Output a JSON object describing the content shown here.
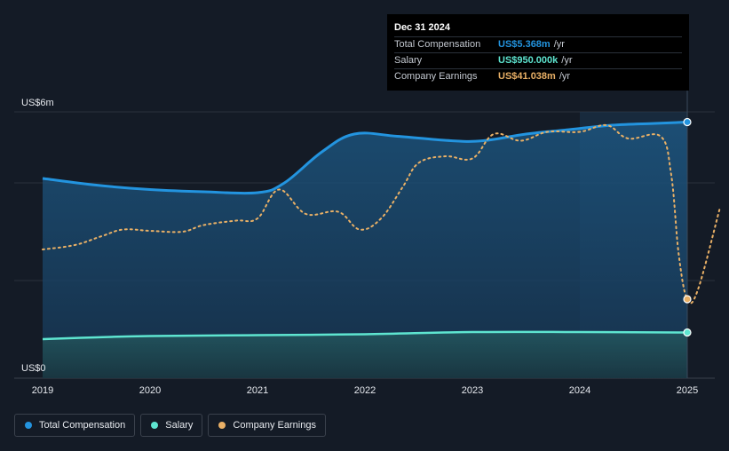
{
  "chart_data": {
    "type": "area",
    "x_ticks": [
      "2019",
      "2020",
      "2021",
      "2022",
      "2023",
      "2024",
      "2025"
    ],
    "y_labels": {
      "top": "US$6m",
      "bottom": "US$0"
    },
    "ylim": [
      0,
      6.0
    ],
    "y_gridlines": [
      0,
      2.2,
      4.4,
      6.0
    ],
    "series": [
      {
        "name": "Total Compensation",
        "color": "#2394df",
        "points": [
          [
            2019.0,
            4.5
          ],
          [
            2019.5,
            4.35
          ],
          [
            2020.0,
            4.25
          ],
          [
            2020.5,
            4.2
          ],
          [
            2021.0,
            4.18
          ],
          [
            2021.25,
            4.4
          ],
          [
            2021.6,
            5.1
          ],
          [
            2021.9,
            5.5
          ],
          [
            2022.3,
            5.45
          ],
          [
            2022.8,
            5.35
          ],
          [
            2023.1,
            5.35
          ],
          [
            2023.5,
            5.5
          ],
          [
            2023.9,
            5.6
          ],
          [
            2024.3,
            5.7
          ],
          [
            2024.7,
            5.74
          ],
          [
            2025.0,
            5.77
          ]
        ]
      },
      {
        "name": "Salary",
        "color": "#5ee5d0",
        "points": [
          [
            2019.0,
            0.88
          ],
          [
            2019.5,
            0.92
          ],
          [
            2020.0,
            0.95
          ],
          [
            2021.0,
            0.97
          ],
          [
            2022.0,
            0.99
          ],
          [
            2023.0,
            1.04
          ],
          [
            2024.0,
            1.04
          ],
          [
            2025.0,
            1.03
          ]
        ]
      },
      {
        "name": "Company Earnings",
        "color": "#e9b066",
        "points": [
          [
            2019.0,
            2.9
          ],
          [
            2019.3,
            3.0
          ],
          [
            2019.55,
            3.2
          ],
          [
            2019.75,
            3.35
          ],
          [
            2020.0,
            3.32
          ],
          [
            2020.3,
            3.3
          ],
          [
            2020.5,
            3.45
          ],
          [
            2020.8,
            3.55
          ],
          [
            2021.0,
            3.6
          ],
          [
            2021.2,
            4.25
          ],
          [
            2021.45,
            3.7
          ],
          [
            2021.75,
            3.75
          ],
          [
            2021.95,
            3.35
          ],
          [
            2022.15,
            3.6
          ],
          [
            2022.35,
            4.3
          ],
          [
            2022.5,
            4.85
          ],
          [
            2022.75,
            5.0
          ],
          [
            2023.0,
            4.95
          ],
          [
            2023.2,
            5.5
          ],
          [
            2023.45,
            5.35
          ],
          [
            2023.7,
            5.55
          ],
          [
            2024.0,
            5.55
          ],
          [
            2024.25,
            5.7
          ],
          [
            2024.45,
            5.4
          ],
          [
            2024.75,
            5.45
          ],
          [
            2024.85,
            4.6
          ],
          [
            2024.92,
            2.8
          ],
          [
            2025.0,
            1.78
          ],
          [
            2025.1,
            2.0
          ],
          [
            2025.3,
            3.8
          ]
        ]
      }
    ],
    "end_markers": {
      "Total Compensation": 5.77,
      "Salary": 1.03,
      "Company Earnings": 1.78
    },
    "highlight_from": 2024.0,
    "highlight_to": 2025.0
  },
  "tooltip": {
    "date": "Dec 31 2024",
    "rows": [
      {
        "label": "Total Compensation",
        "value": "US$5.368m",
        "unit": "/yr",
        "color": "#2394df"
      },
      {
        "label": "Salary",
        "value": "US$950.000k",
        "unit": "/yr",
        "color": "#5ee5d0"
      },
      {
        "label": "Company Earnings",
        "value": "US$41.038m",
        "unit": "/yr",
        "color": "#e9b066"
      }
    ]
  },
  "legend": [
    {
      "label": "Total Compensation",
      "color": "#2394df"
    },
    {
      "label": "Salary",
      "color": "#5ee5d0"
    },
    {
      "label": "Company Earnings",
      "color": "#e9b066"
    }
  ]
}
